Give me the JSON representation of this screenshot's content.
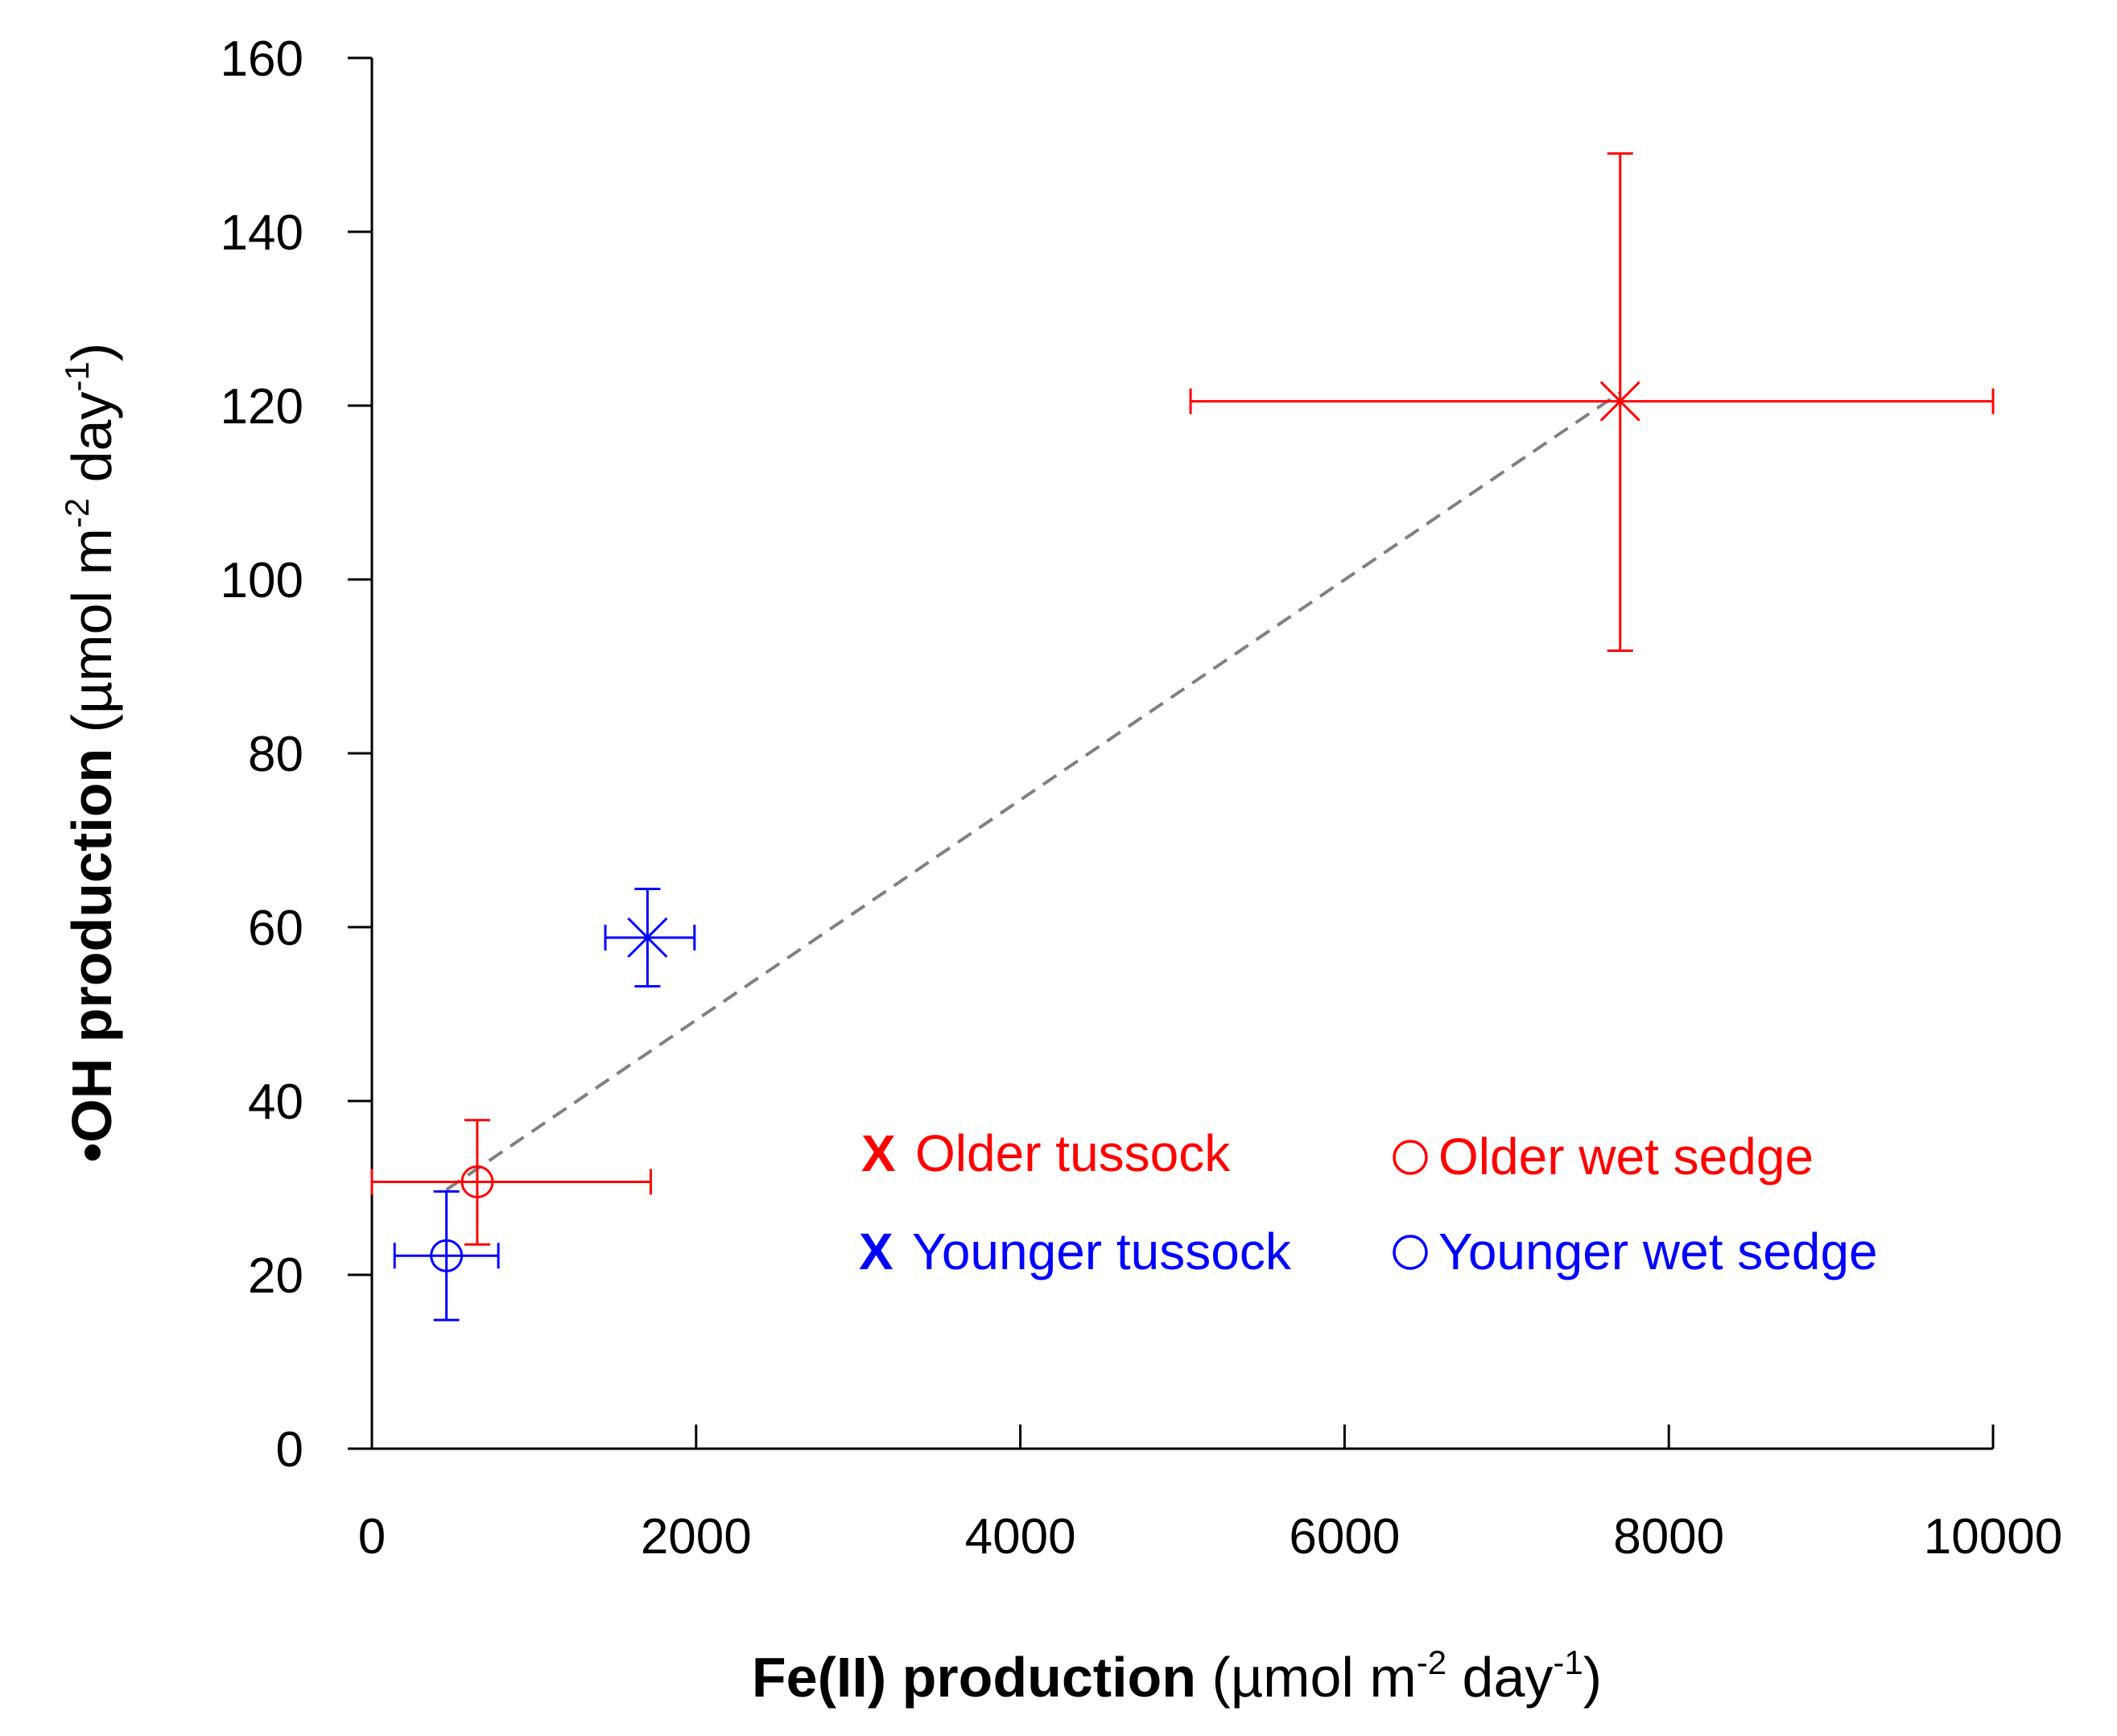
{
  "chart_data": {
    "type": "scatter",
    "x_label": {
      "bold": "Fe(II) production",
      "unit_prefix": " (µmol m",
      "unit_exp1": "-2",
      "unit_mid": " day",
      "unit_exp2": "-1",
      "unit_suffix": ")"
    },
    "y_label": {
      "bold": "•OH production",
      "unit_prefix": " (µmol m",
      "unit_exp1": "-2",
      "unit_mid": " day",
      "unit_exp2": "-1",
      "unit_suffix": ")"
    },
    "xlim": [
      0,
      10000
    ],
    "ylim": [
      0,
      160
    ],
    "x_ticks": [
      0,
      2000,
      4000,
      6000,
      8000,
      10000
    ],
    "y_ticks": [
      0,
      20,
      40,
      60,
      80,
      100,
      120,
      140,
      160
    ],
    "x_tick_labels": [
      "0",
      "2000",
      "4000",
      "6000",
      "8000",
      "10000"
    ],
    "y_tick_labels": [
      "0",
      "20",
      "40",
      "60",
      "80",
      "100",
      "120",
      "140",
      "160"
    ],
    "grid": false,
    "legend_position": "lower-right",
    "series": [
      {
        "name": "Older tussock",
        "marker": "x",
        "color": "#ff0000",
        "x": 7700,
        "y": 120.5,
        "x_err": [
          5050,
          10000
        ],
        "y_err": [
          91.8,
          149
        ]
      },
      {
        "name": "Older wet sedge",
        "marker": "o",
        "color": "#ff0000",
        "x": 650,
        "y": 30.7,
        "x_err": [
          0,
          1720
        ],
        "y_err": [
          23.5,
          37.8
        ]
      },
      {
        "name": "Younger tussock",
        "marker": "x",
        "color": "#0000ff",
        "x": 1700,
        "y": 58.8,
        "x_err": [
          1440,
          1990
        ],
        "y_err": [
          53.2,
          64.4
        ]
      },
      {
        "name": "Younger wet sedge",
        "marker": "o",
        "color": "#0000ff",
        "x": 460,
        "y": 22.2,
        "x_err": [
          140,
          780
        ],
        "y_err": [
          14.8,
          29.6
        ]
      }
    ],
    "trend_line": {
      "style": "dashed",
      "color": "#808080",
      "x": [
        460,
        7700
      ],
      "y": [
        29.8,
        121.5
      ]
    },
    "legend": [
      {
        "symbol": "X",
        "symbol_type": "x",
        "label": "Older tussock",
        "color": "#ff0000"
      },
      {
        "symbol": "○",
        "symbol_type": "o",
        "label": "Older wet sedge",
        "color": "#ff0000"
      },
      {
        "symbol": "X",
        "symbol_type": "x",
        "label": "Younger tussock",
        "color": "#0000ff"
      },
      {
        "symbol": "○",
        "symbol_type": "o",
        "label": "Younger wet sedge",
        "color": "#0000ff"
      }
    ]
  }
}
